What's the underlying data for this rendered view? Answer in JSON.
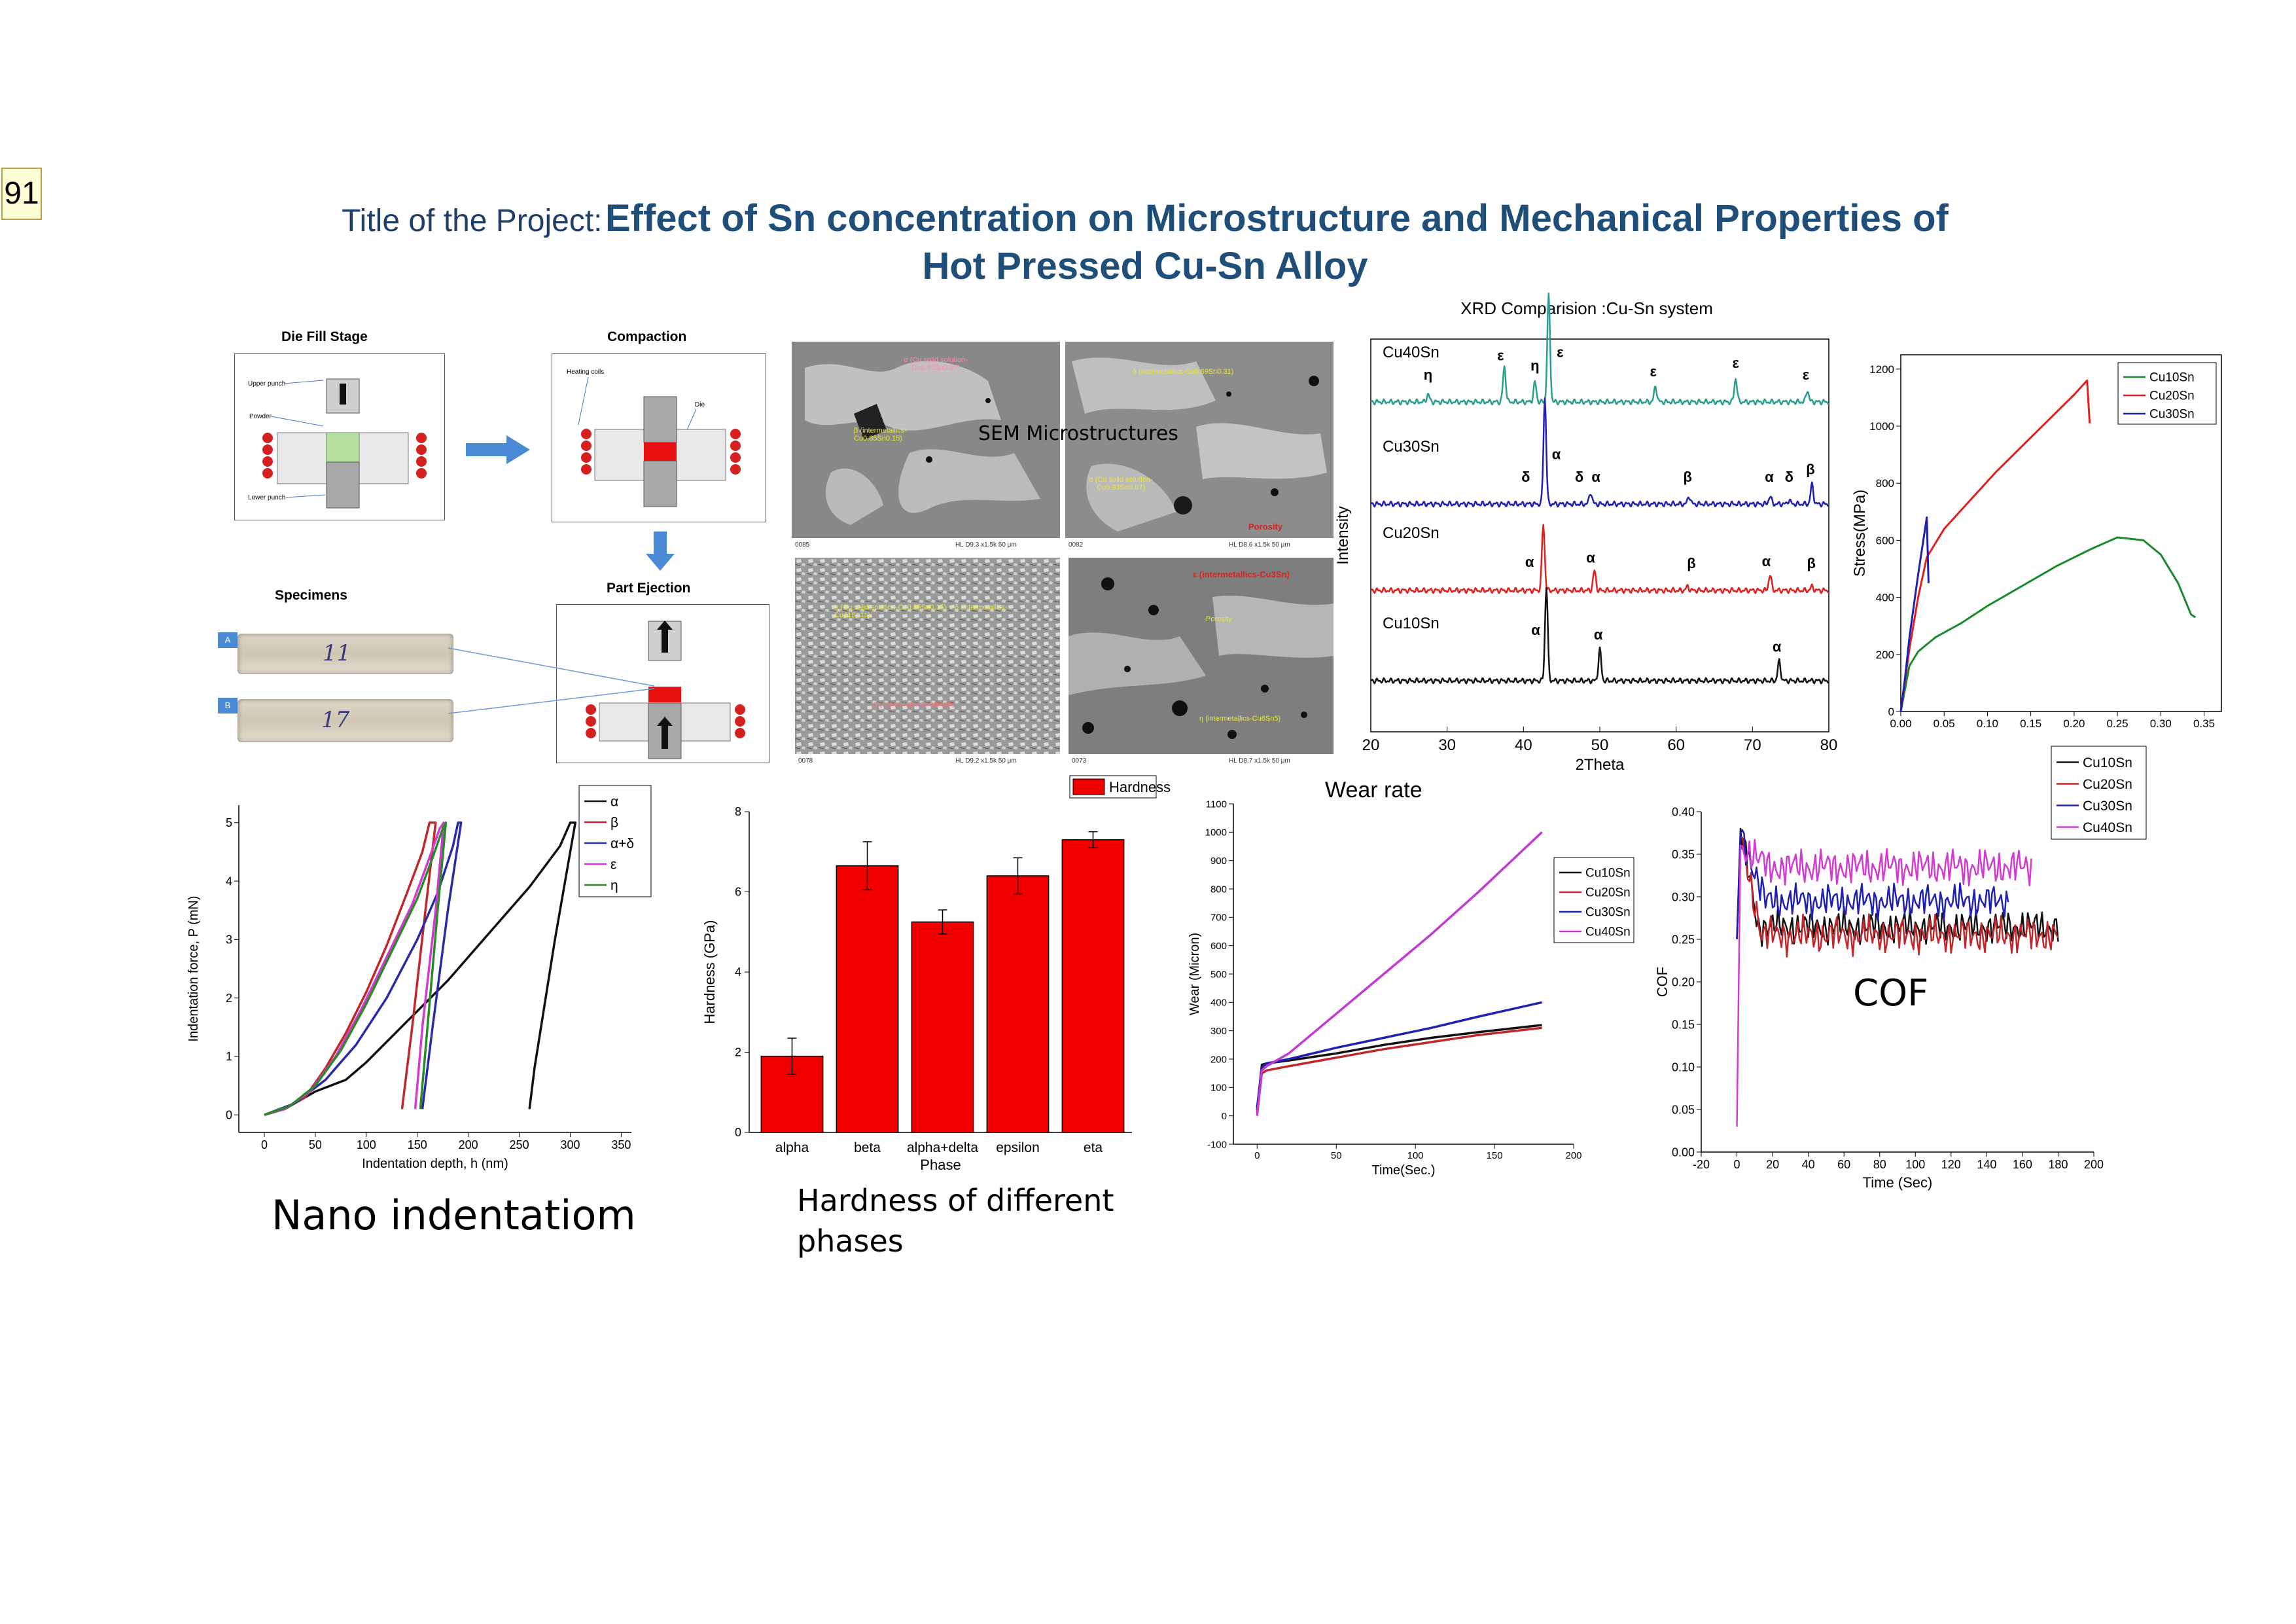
{
  "badge": "91",
  "title": {
    "prefix": "Title of the Project:",
    "line1": "Effect of Sn concentration on Microstructure and Mechanical Properties of",
    "line2": "Hot Pressed Cu-Sn Alloy"
  },
  "process": {
    "die_fill_label": "Die Fill Stage",
    "compaction_label": "Compaction",
    "part_ejection_label": "Part Ejection",
    "specimens_label": "Specimens",
    "upper_punch": "Upper punch",
    "powder": "Powder",
    "lower_punch": "Lower punch",
    "heating_coils": "Heating coils",
    "die": "Die",
    "specimen_a_tag": "A",
    "specimen_b_tag": "B",
    "specimen_a_mark": "11",
    "specimen_b_mark": "17"
  },
  "sem": {
    "label": "SEM Microstructures",
    "img1": {
      "note1": "α (Cu solid solution-Cu0.93Sn0.07)",
      "note2": "β (intermetallics-Cu0.85Sn0.15)",
      "footer_left": "0085",
      "footer_right": "HL  D9.3  x1.5k   50 μm"
    },
    "img2": {
      "note1": "δ (intermetallics-Cu0.69Sn0.31)",
      "note2": "α (Cu solid solution-Cu0.93Sn0.07)",
      "note3": "Porosity",
      "footer_left": "0082",
      "footer_right": "HL  D8.6  x1.5k   50 μm"
    },
    "img3": {
      "note1": "α (Cu solid solution-Cu0.85Sn0.15) + δ (intermetallics-Cu41Sn11)",
      "note2": "η (intermetallics-Cu6Sn5)",
      "footer_left": "0078",
      "footer_right": "HL  D9.2  x1.5k   50 μm"
    },
    "img4": {
      "note1": "ε (intermetallics-Cu3Sn)",
      "note2": "Porosity",
      "note3": "η (intermetallics-Cu6Sn5)",
      "footer_left": "0073",
      "footer_right": "HL  D8.7  x1.5k   50 μm"
    }
  },
  "captions": {
    "nano": "Nano indentatiom",
    "hardness_line1": "Hardness of different",
    "hardness_line2": "phases",
    "cof": "COF"
  },
  "chart_data": [
    {
      "id": "xrd",
      "type": "line",
      "title": "XRD Comparision :Cu-Sn system",
      "xlabel": "2Theta",
      "ylabel": "Intensity",
      "xlim": [
        20,
        80
      ],
      "xticks": [
        20,
        30,
        40,
        50,
        60,
        70,
        80
      ],
      "series": [
        {
          "name": "Cu40Sn",
          "color": "#2a9d8f",
          "baseline": 0.84,
          "peaks": [
            [
              27.5,
              0.02
            ],
            [
              37.5,
              0.09
            ],
            [
              41.5,
              0.05
            ],
            [
              43.3,
              0.27
            ],
            [
              57.3,
              0.04
            ],
            [
              67.8,
              0.06
            ],
            [
              77.2,
              0.03
            ]
          ],
          "labels": [
            {
              "x": 27.5,
              "t": "η"
            },
            {
              "x": 37,
              "t": "ε"
            },
            {
              "x": 41.5,
              "t": "η"
            },
            {
              "x": 44.8,
              "t": "ε"
            },
            {
              "x": 57,
              "t": "ε"
            },
            {
              "x": 67.8,
              "t": "ε"
            },
            {
              "x": 77,
              "t": "ε"
            }
          ]
        },
        {
          "name": "Cu30Sn",
          "color": "#1f1fb4",
          "baseline": 0.58,
          "peaks": [
            [
              42.8,
              0.27
            ],
            [
              48.8,
              0.03
            ],
            [
              61.7,
              0.02
            ],
            [
              72.3,
              0.02
            ],
            [
              74.8,
              0.01
            ],
            [
              77.8,
              0.05
            ]
          ],
          "labels": [
            {
              "x": 40.3,
              "t": "δ"
            },
            {
              "x": 44.3,
              "t": "α"
            },
            {
              "x": 47.3,
              "t": "δ"
            },
            {
              "x": 49.5,
              "t": "α"
            },
            {
              "x": 61.5,
              "t": "β"
            },
            {
              "x": 72.2,
              "t": "α"
            },
            {
              "x": 74.8,
              "t": "δ"
            },
            {
              "x": 77.6,
              "t": "β"
            }
          ]
        },
        {
          "name": "Cu20Sn",
          "color": "#e02020",
          "baseline": 0.36,
          "peaks": [
            [
              42.6,
              0.17
            ],
            [
              49.3,
              0.05
            ],
            [
              61.5,
              0.01
            ],
            [
              72.3,
              0.04
            ],
            [
              77.8,
              0.01
            ]
          ],
          "labels": [
            {
              "x": 40.8,
              "t": "α"
            },
            {
              "x": 48.8,
              "t": "α"
            },
            {
              "x": 62,
              "t": "β"
            },
            {
              "x": 71.8,
              "t": "α"
            },
            {
              "x": 77.7,
              "t": "β"
            }
          ]
        },
        {
          "name": "Cu10Sn",
          "color": "#111111",
          "baseline": 0.13,
          "peaks": [
            [
              43.0,
              0.24
            ],
            [
              50.0,
              0.08
            ],
            [
              73.5,
              0.05
            ]
          ],
          "labels": [
            {
              "x": 41.6,
              "t": "α"
            },
            {
              "x": 49.8,
              "t": "α"
            },
            {
              "x": 73.2,
              "t": "α"
            }
          ]
        }
      ]
    },
    {
      "id": "stress",
      "type": "line",
      "ylabel": "Stress(MPa)",
      "xlim": [
        0.0,
        0.37
      ],
      "ylim": [
        0,
        1250
      ],
      "xticks": [
        0.0,
        0.05,
        0.1,
        0.15,
        0.2,
        0.25,
        0.3,
        0.35
      ],
      "yticks": [
        0,
        200,
        400,
        600,
        800,
        1000,
        1200
      ],
      "legend": "top-right",
      "series": [
        {
          "name": "Cu10Sn",
          "color": "#1a8a2a",
          "x": [
            0,
            0.005,
            0.01,
            0.02,
            0.04,
            0.07,
            0.1,
            0.14,
            0.18,
            0.22,
            0.25,
            0.28,
            0.3,
            0.32,
            0.335,
            0.34
          ],
          "y": [
            0,
            80,
            160,
            210,
            260,
            310,
            370,
            440,
            510,
            570,
            610,
            600,
            550,
            450,
            340,
            330
          ]
        },
        {
          "name": "Cu20Sn",
          "color": "#e02020",
          "x": [
            0,
            0.01,
            0.02,
            0.03,
            0.05,
            0.08,
            0.11,
            0.14,
            0.17,
            0.2,
            0.215,
            0.218
          ],
          "y": [
            0,
            220,
            400,
            540,
            640,
            740,
            840,
            930,
            1020,
            1110,
            1160,
            1010
          ]
        },
        {
          "name": "Cu30Sn",
          "color": "#1f1fb4",
          "x": [
            0,
            0.005,
            0.01,
            0.02,
            0.025,
            0.028,
            0.03,
            0.032
          ],
          "y": [
            0,
            120,
            260,
            480,
            580,
            640,
            680,
            450
          ]
        }
      ]
    },
    {
      "id": "indentation",
      "type": "line",
      "xlabel": "Indentation depth, h (nm)",
      "ylabel": "Indentation force, P (mN)",
      "xlim": [
        -25,
        360
      ],
      "ylim": [
        -0.3,
        5.3
      ],
      "xticks": [
        0,
        50,
        100,
        150,
        200,
        250,
        300,
        350
      ],
      "yticks": [
        0,
        1,
        2,
        3,
        4,
        5
      ],
      "legend": "top-right",
      "series": [
        {
          "name": "α",
          "color": "#111111",
          "x": [
            0,
            20,
            50,
            80,
            100,
            140,
            180,
            220,
            260,
            290,
            300,
            305,
            285,
            265,
            260
          ],
          "y": [
            0,
            0.1,
            0.4,
            0.6,
            0.9,
            1.6,
            2.3,
            3.1,
            3.9,
            4.6,
            5.0,
            5.0,
            3.0,
            0.8,
            0.1
          ]
        },
        {
          "name": "β",
          "color": "#c0262a",
          "x": [
            0,
            20,
            40,
            60,
            80,
            100,
            120,
            140,
            155,
            162,
            168,
            158,
            145,
            135
          ],
          "y": [
            0,
            0.1,
            0.3,
            0.8,
            1.4,
            2.1,
            2.9,
            3.8,
            4.5,
            5.0,
            5.0,
            3.5,
            1.5,
            0.1
          ]
        },
        {
          "name": "α+δ",
          "color": "#2a2aa8",
          "x": [
            0,
            30,
            60,
            90,
            120,
            150,
            170,
            185,
            190,
            193,
            180,
            165,
            155
          ],
          "y": [
            0,
            0.2,
            0.6,
            1.2,
            2.0,
            3.0,
            3.8,
            4.6,
            5.0,
            5.0,
            3.5,
            1.5,
            0.1
          ]
        },
        {
          "name": "ε",
          "color": "#d23ad2",
          "x": [
            0,
            20,
            45,
            70,
            95,
            120,
            145,
            162,
            172,
            176,
            168,
            155,
            148
          ],
          "y": [
            0,
            0.1,
            0.4,
            1.0,
            1.8,
            2.7,
            3.6,
            4.4,
            4.9,
            5.0,
            3.5,
            1.5,
            0.1
          ]
        },
        {
          "name": "η",
          "color": "#2a8a2a",
          "x": [
            0,
            25,
            50,
            75,
            100,
            125,
            150,
            165,
            175,
            178,
            170,
            160,
            153
          ],
          "y": [
            0,
            0.15,
            0.5,
            1.1,
            1.9,
            2.8,
            3.7,
            4.4,
            4.9,
            5.0,
            3.5,
            1.5,
            0.1
          ]
        }
      ]
    },
    {
      "id": "hardness",
      "type": "bar",
      "categories": [
        "alpha",
        "beta",
        "alpha+delta",
        "epsilon",
        "eta"
      ],
      "series": [
        {
          "name": "Hardness",
          "color": "#f20000",
          "values": [
            1.9,
            6.65,
            5.25,
            6.4,
            7.3
          ],
          "errors": [
            0.45,
            0.6,
            0.3,
            0.45,
            0.2
          ]
        }
      ],
      "xlabel": "Phase",
      "ylabel": "Hardness (GPa)",
      "ylim": [
        0,
        8
      ],
      "yticks": [
        0,
        2,
        4,
        6,
        8
      ],
      "legend": "top-right"
    },
    {
      "id": "wear",
      "type": "line",
      "title": "Wear rate",
      "xlabel": "Time(Sec.)",
      "ylabel": "Wear (Micron)",
      "xlim": [
        -15,
        200
      ],
      "ylim": [
        -100,
        1100
      ],
      "xticks": [
        0,
        50,
        100,
        150,
        200
      ],
      "yticks": [
        -100,
        0,
        100,
        200,
        300,
        400,
        500,
        600,
        700,
        800,
        900,
        1000,
        1100
      ],
      "legend": "right",
      "series": [
        {
          "name": "Cu10Sn",
          "color": "#111111",
          "x": [
            0,
            3,
            6,
            20,
            50,
            80,
            110,
            140,
            180
          ],
          "y": [
            20,
            180,
            185,
            195,
            220,
            250,
            275,
            295,
            320
          ]
        },
        {
          "name": "Cu20Sn",
          "color": "#c0262a",
          "x": [
            0,
            3,
            6,
            20,
            50,
            80,
            110,
            140,
            180
          ],
          "y": [
            10,
            150,
            160,
            175,
            205,
            235,
            260,
            285,
            310
          ]
        },
        {
          "name": "Cu30Sn",
          "color": "#1f1fb4",
          "x": [
            0,
            3,
            6,
            20,
            50,
            80,
            110,
            140,
            180
          ],
          "y": [
            30,
            170,
            185,
            200,
            240,
            275,
            310,
            350,
            400
          ]
        },
        {
          "name": "Cu40Sn",
          "color": "#c23ad2",
          "x": [
            0,
            3,
            6,
            20,
            50,
            80,
            110,
            140,
            180
          ],
          "y": [
            0,
            160,
            175,
            220,
            360,
            500,
            640,
            790,
            1000
          ]
        }
      ]
    },
    {
      "id": "cof",
      "type": "line",
      "xlabel": "Time (Sec)",
      "ylabel": "COF",
      "xlim": [
        -20,
        200
      ],
      "ylim": [
        0,
        0.4
      ],
      "xticks": [
        -20,
        0,
        20,
        40,
        60,
        80,
        100,
        120,
        140,
        160,
        180,
        200
      ],
      "yticks": [
        0.0,
        0.05,
        0.1,
        0.15,
        0.2,
        0.25,
        0.3,
        0.35,
        0.4
      ],
      "legend": "top",
      "series": [
        {
          "name": "Cu10Sn",
          "color": "#111111",
          "start": 0.25,
          "peak": 0.38,
          "mean": 0.265,
          "amp": 0.012,
          "end": 180
        },
        {
          "name": "Cu20Sn",
          "color": "#c0262a",
          "start": 0.25,
          "peak": 0.37,
          "mean": 0.255,
          "amp": 0.013,
          "end": 180
        },
        {
          "name": "Cu30Sn",
          "color": "#1f1fb4",
          "start": 0.25,
          "peak": 0.375,
          "mean": 0.295,
          "amp": 0.012,
          "end": 152
        },
        {
          "name": "Cu40Sn",
          "color": "#d23ad2",
          "start": 0.03,
          "peak": 0.36,
          "mean": 0.335,
          "amp": 0.013,
          "end": 165
        }
      ]
    }
  ]
}
